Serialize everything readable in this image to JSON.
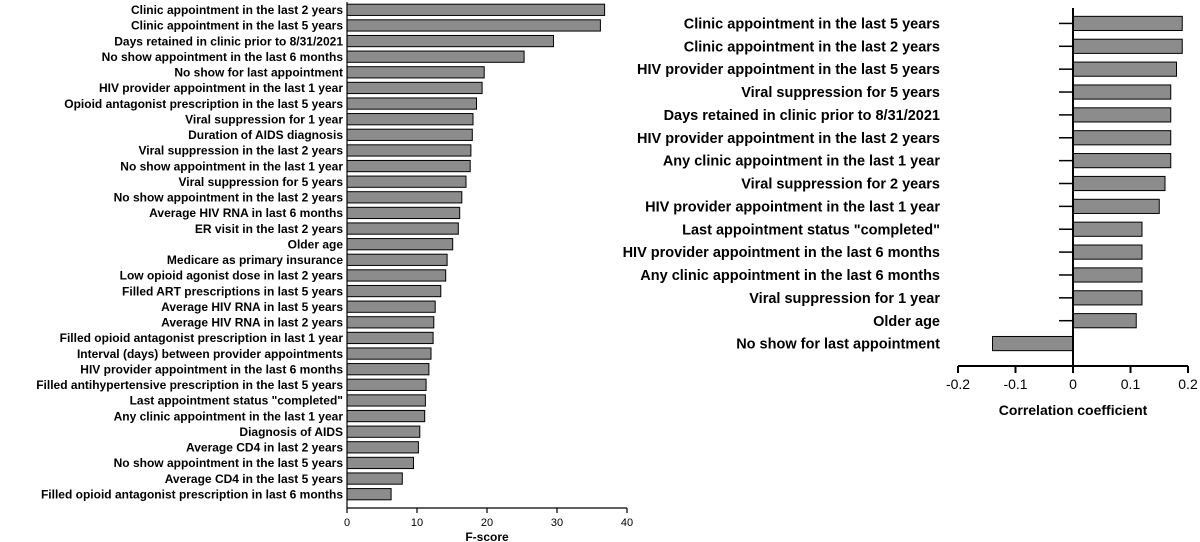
{
  "chart_data": [
    {
      "type": "bar",
      "orientation": "horizontal",
      "xlabel": "F-score",
      "xlim": [
        0,
        40
      ],
      "xticks": [
        0,
        10,
        20,
        30,
        40
      ],
      "bar_color": "#8c8c8c",
      "grid": false,
      "categories": [
        "Clinic appointment in the last 2 years",
        "Clinic appointment in the last 5 years",
        "Days retained in clinic prior to 8/31/2021",
        "No show appointment in the last 6 months",
        "No show for last appointment",
        "HIV provider appointment in the last 1 year",
        "Opioid antagonist prescription in the last 5 years",
        "Viral suppression for 1 year",
        "Duration of AIDS diagnosis",
        "Viral suppression in the last 2 years",
        "No show appointment in the last 1 year",
        "Viral suppression for 5 years",
        "No show appointment in the last 2 years",
        "Average HIV RNA in last 6 months",
        "ER visit in the last 2 years",
        "Older age",
        "Medicare as primary insurance",
        "Low opioid agonist dose in last 2 years",
        "Filled ART prescriptions in last 5 years",
        "Average HIV RNA in last 5 years",
        "Average HIV RNA in last 2 years",
        "Filled opioid antagonist prescription in last 1 year",
        "Interval (days) between provider appointments",
        "HIV provider appointment in the last 6 months",
        "Filled antihypertensive prescription in the last 5 years",
        "Last appointment status \"completed\"",
        "Any clinic appointment in the last 1 year",
        "Diagnosis of AIDS",
        "Average CD4 in last 2 years",
        "No show appointment in the last 5 years",
        "Average CD4 in the last 5 years",
        "Filled opioid antagonist prescription in last 6 months"
      ],
      "values": [
        36.8,
        36.2,
        29.5,
        25.3,
        19.6,
        19.3,
        18.5,
        18.0,
        17.9,
        17.7,
        17.6,
        17.0,
        16.4,
        16.1,
        15.9,
        15.1,
        14.3,
        14.1,
        13.4,
        12.6,
        12.4,
        12.3,
        12.0,
        11.7,
        11.3,
        11.2,
        11.1,
        10.4,
        10.2,
        9.5,
        7.9,
        6.3
      ]
    },
    {
      "type": "bar",
      "orientation": "horizontal",
      "xlabel": "Correlation coefficient",
      "xlim": [
        -0.2,
        0.2
      ],
      "xticks": [
        -0.2,
        -0.1,
        0,
        0.1,
        0.2
      ],
      "xtick_labels": [
        "-0.2",
        "-0.1",
        "0",
        "0.1",
        "0.2"
      ],
      "bar_color": "#8c8c8c",
      "grid": false,
      "categories": [
        "Clinic appointment in the last 5 years",
        "Clinic appointment in the last 2 years",
        "HIV provider appointment in the last 5 years",
        "Viral suppression for 5 years",
        "Days retained in clinic prior to 8/31/2021",
        "HIV provider appointment in the last 2 years",
        "Any clinic appointment in the last 1 year",
        "Viral suppression for 2 years",
        "HIV provider appointment in the last 1 year",
        "Last appointment status \"completed\"",
        "HIV provider appointment in the last 6 months",
        "Any clinic appointment in the last 6 months",
        "Viral suppression for 1 year",
        "Older age",
        "No show for last appointment"
      ],
      "values": [
        0.19,
        0.19,
        0.18,
        0.17,
        0.17,
        0.17,
        0.17,
        0.16,
        0.15,
        0.12,
        0.12,
        0.12,
        0.12,
        0.11,
        -0.14
      ]
    }
  ]
}
